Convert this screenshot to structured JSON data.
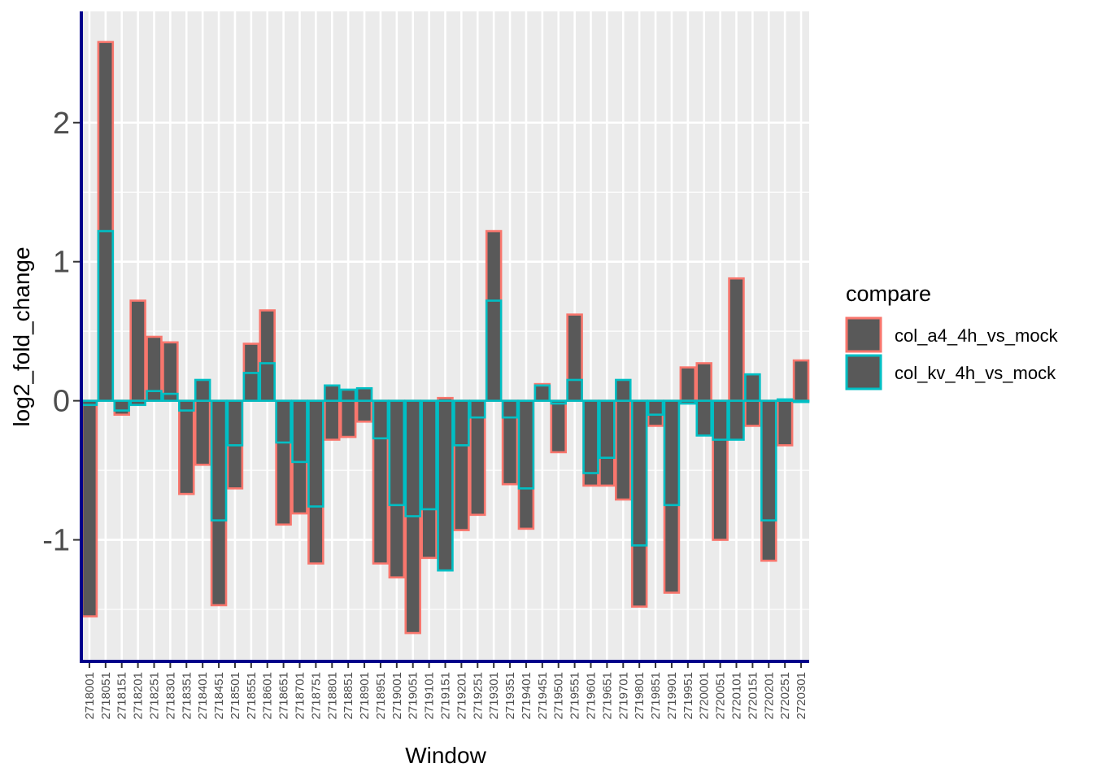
{
  "chart_data": {
    "type": "bar",
    "xlabel": "Window",
    "ylabel": "log2_fold_change",
    "ylim": [
      -1.88,
      2.8
    ],
    "yticks": [
      -1,
      0,
      1,
      2
    ],
    "ytick_labels": [
      "-1",
      "0",
      "1",
      "2"
    ],
    "grid": true,
    "legend_title": "compare",
    "legend_position": "right",
    "fill_color": "#595959",
    "categories": [
      "2718001",
      "2718051",
      "2718151",
      "2718201",
      "2718251",
      "2718301",
      "2718351",
      "2718401",
      "2718451",
      "2718501",
      "2718551",
      "2718601",
      "2718651",
      "2718701",
      "2718751",
      "2718801",
      "2718851",
      "2718901",
      "2718951",
      "2719001",
      "2719051",
      "2719101",
      "2719151",
      "2719201",
      "2719251",
      "2719301",
      "2719351",
      "2719401",
      "2719451",
      "2719501",
      "2719551",
      "2719601",
      "2719651",
      "2719701",
      "2719801",
      "2719851",
      "2719901",
      "2719951",
      "2720001",
      "2720051",
      "2720101",
      "2720151",
      "2720201",
      "2720251",
      "2720301"
    ],
    "series": [
      {
        "name": "col_a4_4h_vs_mock",
        "color": "#F8766D",
        "values": [
          -1.55,
          2.58,
          -0.1,
          0.72,
          0.46,
          0.42,
          -0.67,
          -0.46,
          -1.47,
          -0.63,
          0.41,
          0.65,
          -0.89,
          -0.81,
          -1.17,
          -0.28,
          -0.26,
          -0.15,
          -1.17,
          -1.27,
          -1.67,
          -1.13,
          0.02,
          -0.93,
          -0.82,
          1.22,
          -0.6,
          -0.92,
          0.12,
          -0.37,
          0.62,
          -0.61,
          -0.61,
          -0.71,
          -1.48,
          -0.18,
          -1.38,
          0.24,
          0.27,
          -1.0,
          0.88,
          -0.18,
          -1.15,
          -0.32,
          0.29
        ]
      },
      {
        "name": "col_kv_4h_vs_mock",
        "color": "#00BFC4",
        "values": [
          -0.03,
          1.22,
          -0.07,
          -0.03,
          0.07,
          0.05,
          -0.07,
          0.15,
          -0.86,
          -0.32,
          0.2,
          0.27,
          -0.3,
          -0.44,
          -0.76,
          0.11,
          0.08,
          0.09,
          -0.27,
          -0.75,
          -0.83,
          -0.78,
          -1.22,
          -0.32,
          -0.12,
          0.72,
          -0.12,
          -0.63,
          0.11,
          -0.02,
          0.15,
          -0.52,
          -0.41,
          0.15,
          -1.04,
          -0.1,
          -0.75,
          -0.02,
          -0.25,
          -0.28,
          -0.28,
          0.19,
          -0.86,
          0.01,
          0.0
        ]
      }
    ]
  }
}
